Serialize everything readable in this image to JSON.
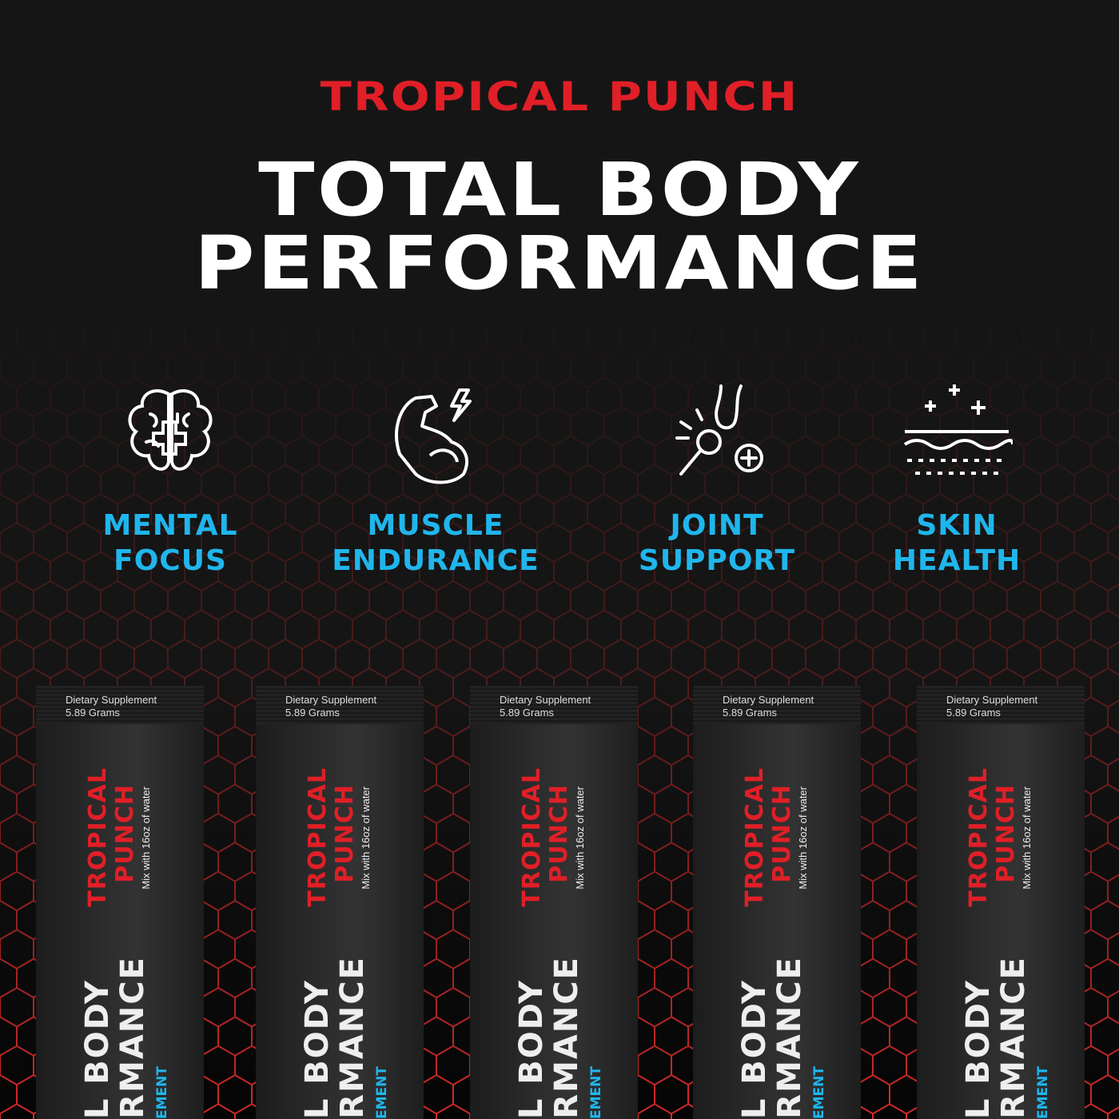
{
  "flavor_heading": "TROPICAL PUNCH",
  "headline": {
    "line1": "TOTAL BODY",
    "line2": "PERFORMANCE"
  },
  "colors": {
    "red": "#e01f27",
    "cyan": "#1fb6ec",
    "background": "#151515"
  },
  "features": [
    {
      "icon": "brain-plus-icon",
      "line1": "MENTAL",
      "line2": "FOCUS"
    },
    {
      "icon": "flexed-arm-lightning-icon",
      "line1": "MUSCLE",
      "line2": "ENDURANCE"
    },
    {
      "icon": "joint-plus-icon",
      "line1": "JOINT",
      "line2": "SUPPORT"
    },
    {
      "icon": "skin-layers-plus-icon",
      "line1": "SKIN",
      "line2": "HEALTH"
    }
  ],
  "packet": {
    "type": "Dietary Supplement",
    "weight": "5.89 Grams",
    "flavor_line1": "TROPICAL",
    "flavor_line2": "PUNCH",
    "directions": "Mix with 16oz of water",
    "brand_line1": "L BODY",
    "brand_line2": "RMANCE",
    "sub": "EMENT"
  }
}
